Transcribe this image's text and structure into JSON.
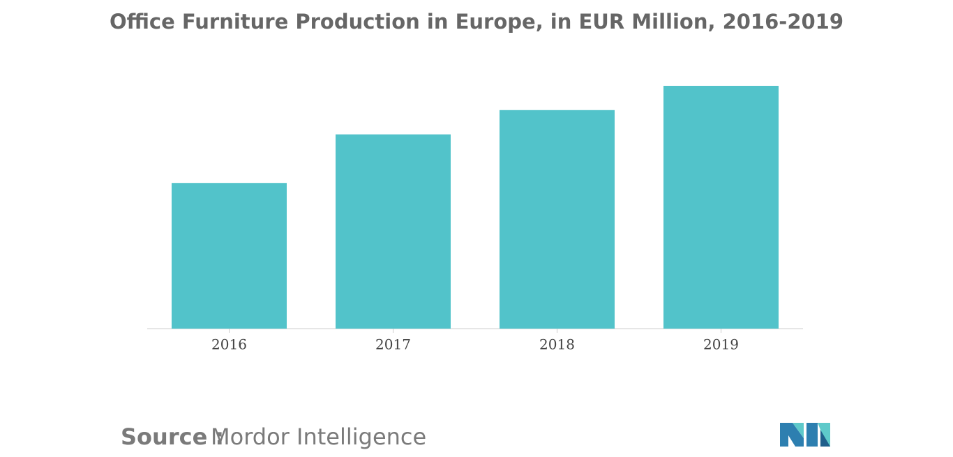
{
  "chart_data": {
    "type": "bar",
    "title": "Office Furniture Production in Europe, in EUR Million, 2016-2019",
    "categories": [
      "2016",
      "2017",
      "2018",
      "2019"
    ],
    "values": [
      6000,
      8000,
      9000,
      10000
    ],
    "color": "#52c3ca",
    "ylim": [
      0,
      10000
    ],
    "grid": false,
    "source_label": "Source :",
    "source": "Mordor Intelligence"
  }
}
